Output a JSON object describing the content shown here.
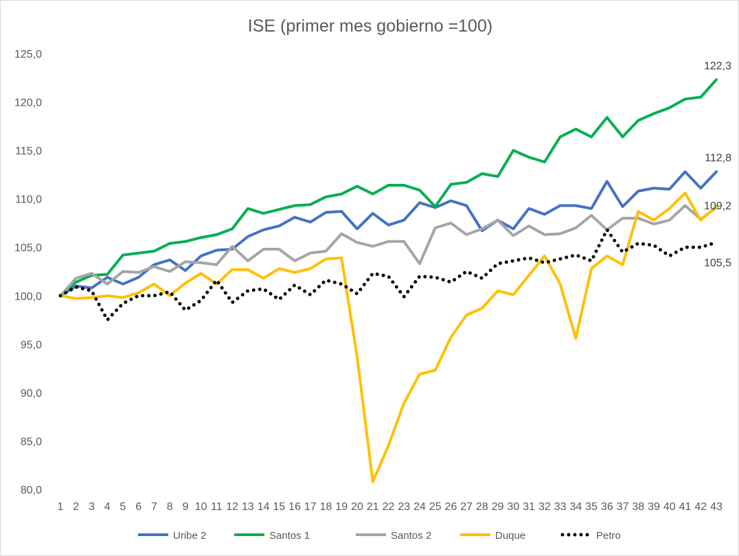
{
  "chart_data": {
    "type": "line",
    "title": "ISE (primer mes gobierno =100)",
    "xlabel": "",
    "ylabel": "",
    "ylim": [
      80,
      125
    ],
    "yticks": [
      80,
      85,
      90,
      95,
      100,
      105,
      110,
      115,
      120,
      125
    ],
    "ytick_labels": [
      "80,0",
      "85,0",
      "90,0",
      "95,0",
      "100,0",
      "105,0",
      "110,0",
      "115,0",
      "120,0",
      "125,0"
    ],
    "grid": false,
    "legend_position": "bottom",
    "categories": [
      1,
      2,
      3,
      4,
      5,
      6,
      7,
      8,
      9,
      10,
      11,
      12,
      13,
      14,
      15,
      16,
      17,
      18,
      19,
      20,
      21,
      22,
      23,
      24,
      25,
      26,
      27,
      28,
      29,
      30,
      31,
      32,
      33,
      34,
      35,
      36,
      37,
      38,
      39,
      40,
      41,
      42,
      43
    ],
    "series": [
      {
        "name": "Uribe 2",
        "color": "#4472c4",
        "style": "solid",
        "values": [
          100,
          101.0,
          100.8,
          101.9,
          101.2,
          101.9,
          103.2,
          103.7,
          102.6,
          104.1,
          104.7,
          104.8,
          106.1,
          106.8,
          107.2,
          108.1,
          107.6,
          108.6,
          108.7,
          106.9,
          108.5,
          107.3,
          107.8,
          109.6,
          109.1,
          109.8,
          109.3,
          106.7,
          107.8,
          106.9,
          109.0,
          108.4,
          109.3,
          109.3,
          109.0,
          111.8,
          109.2,
          110.8,
          111.1,
          111.0,
          112.8,
          111.1,
          112.8
        ]
      },
      {
        "name": "Santos 1",
        "color": "#00b050",
        "style": "solid",
        "values": [
          100,
          101.4,
          102.1,
          102.2,
          104.2,
          104.4,
          104.6,
          105.4,
          105.6,
          106.0,
          106.3,
          106.9,
          109.0,
          108.5,
          108.9,
          109.3,
          109.4,
          110.2,
          110.5,
          111.3,
          110.5,
          111.4,
          111.4,
          110.9,
          109.2,
          111.5,
          111.7,
          112.6,
          112.3,
          115.0,
          114.3,
          113.8,
          116.4,
          117.2,
          116.4,
          118.4,
          116.4,
          118.1,
          118.8,
          119.4,
          120.3,
          120.5,
          122.3
        ]
      },
      {
        "name": "Santos 2",
        "color": "#a5a5a5",
        "style": "solid",
        "values": [
          100,
          101.8,
          102.3,
          101.2,
          102.5,
          102.4,
          103.0,
          102.5,
          103.5,
          103.4,
          103.2,
          105.1,
          103.6,
          104.8,
          104.8,
          103.6,
          104.4,
          104.6,
          106.4,
          105.5,
          105.1,
          105.6,
          105.6,
          103.3,
          107.0,
          107.5,
          106.3,
          106.9,
          107.8,
          106.2,
          107.2,
          106.3,
          106.4,
          107.0,
          108.3,
          106.8,
          108.0,
          108.0,
          107.4,
          107.8,
          109.3,
          107.9,
          109.1
        ]
      },
      {
        "name": "Duque",
        "color": "#ffc000",
        "style": "solid",
        "values": [
          100,
          99.7,
          99.8,
          100.0,
          99.8,
          100.3,
          101.2,
          100.0,
          101.3,
          102.3,
          101.2,
          102.7,
          102.7,
          101.8,
          102.8,
          102.4,
          102.8,
          103.8,
          103.9,
          93.7,
          80.8,
          84.5,
          88.9,
          91.9,
          92.3,
          95.7,
          98.0,
          98.7,
          100.5,
          100.1,
          102.1,
          104.1,
          101.2,
          95.6,
          102.8,
          104.1,
          103.2,
          108.7,
          107.8,
          109.0,
          110.6,
          107.8,
          109.2
        ]
      },
      {
        "name": "Petro",
        "color": "#000000",
        "style": "dotted",
        "values": [
          100,
          100.9,
          100.5,
          97.5,
          99.2,
          100.0,
          100.0,
          100.4,
          98.5,
          99.5,
          101.6,
          99.3,
          100.5,
          100.7,
          99.6,
          101.1,
          100.1,
          101.6,
          101.2,
          100.2,
          102.3,
          102.0,
          99.9,
          102.0,
          101.9,
          101.4,
          102.5,
          101.8,
          103.3,
          103.6,
          103.9,
          103.4,
          103.8,
          104.2,
          103.6,
          106.8,
          104.5,
          105.4,
          105.2,
          104.1,
          105.0,
          105.0,
          105.5
        ]
      }
    ],
    "end_labels": [
      {
        "series": "Santos 1",
        "text": "122,3"
      },
      {
        "series": "Uribe 2",
        "text": "112,8"
      },
      {
        "series": "Duque",
        "text": "109,2"
      },
      {
        "series": "Petro",
        "text": "105,5"
      }
    ]
  }
}
